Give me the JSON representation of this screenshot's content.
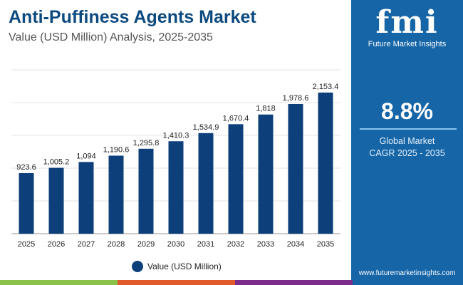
{
  "title": "Anti-Puffiness Agents Market",
  "subtitle": "Value (USD Million) Analysis, 2025-2035",
  "brand": {
    "logo": "fmi",
    "name": "Future Market Insights",
    "website": "www.futuremarketinsights.com"
  },
  "cagr": {
    "value": "8.8%",
    "label1": "Global Market",
    "label2": "CAGR 2025 - 2035"
  },
  "colors": {
    "bar": "#0d3f7a",
    "panel": "#1565a7",
    "title": "#0d4a80",
    "stripes": [
      "#8bc34a",
      "#e05a2b",
      "#7b2d8b",
      "#1565a7"
    ]
  },
  "chart_data": {
    "type": "bar",
    "categories": [
      "2025",
      "2026",
      "2027",
      "2028",
      "2029",
      "2030",
      "2031",
      "2032",
      "2033",
      "2034",
      "2035"
    ],
    "series": [
      {
        "name": "Value (USD Million)",
        "values": [
          923.6,
          1005.2,
          1094,
          1190.6,
          1295.8,
          1410.3,
          1534.9,
          1670.4,
          1818,
          1978.6,
          2153.4
        ]
      }
    ],
    "labels": [
      "923.6",
      "1,005.2",
      "1,094",
      "1,190.6",
      "1,295.8",
      "1,410.3",
      "1,534.9",
      "1,670.4",
      "1,818",
      "1,978.6",
      "2,153.4"
    ],
    "ylim": [
      0,
      2500
    ],
    "grid": true,
    "legend": "bottom"
  }
}
